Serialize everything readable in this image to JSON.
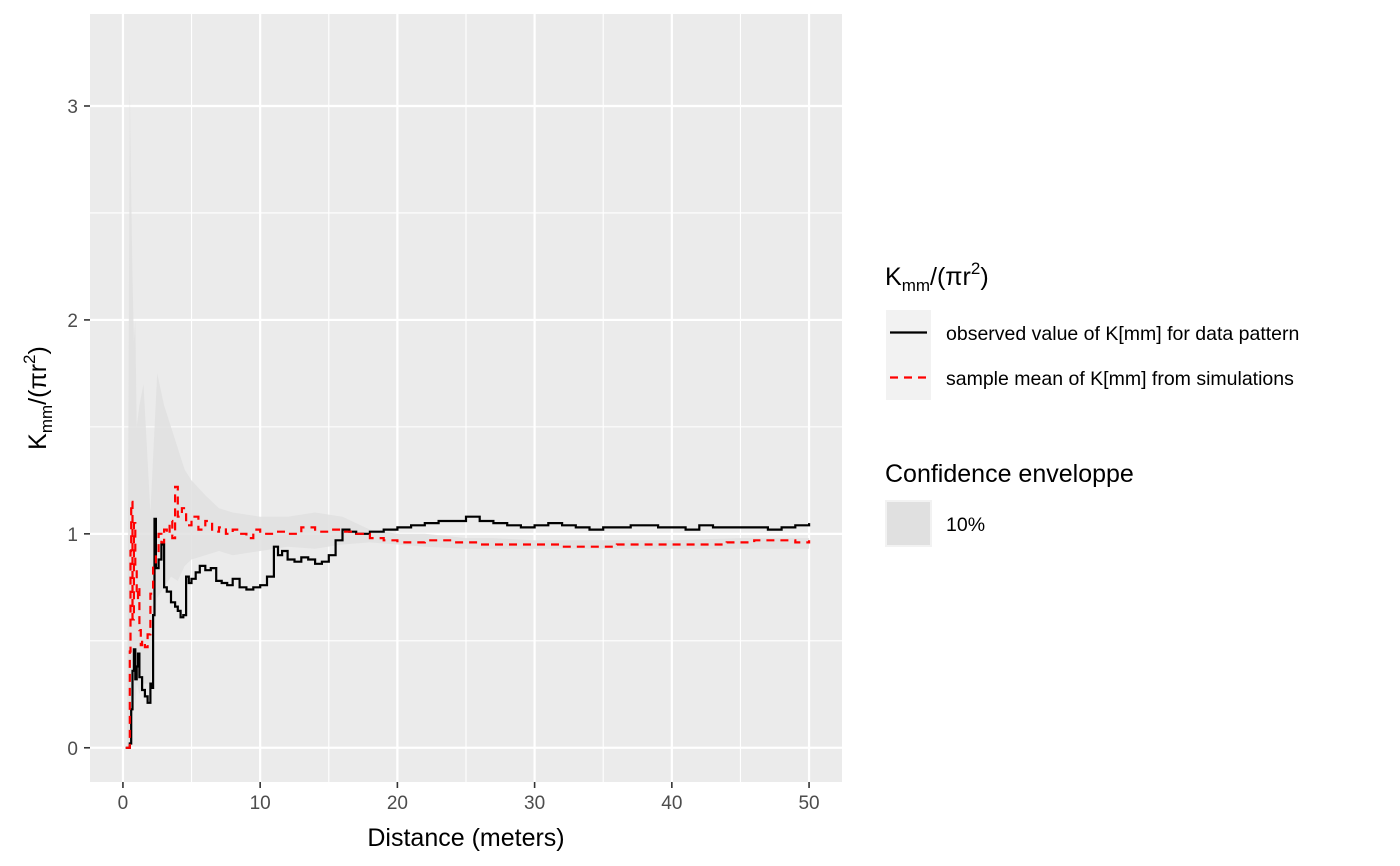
{
  "chart_data": {
    "type": "line",
    "xlabel": "Distance (meters)",
    "ylabel": {
      "base": "K",
      "sub": "mm",
      "rest": "/(πr",
      "sup": "2",
      "end": ")"
    },
    "xlim": [
      -2.4,
      52.4
    ],
    "ylim": [
      -0.16,
      3.43
    ],
    "x_ticks": [
      0,
      10,
      20,
      30,
      40,
      50
    ],
    "x_tick_labels": [
      "0",
      "10",
      "20",
      "30",
      "40",
      "50"
    ],
    "y_ticks": [
      0,
      1,
      2,
      3
    ],
    "y_tick_labels": [
      "0",
      "1",
      "2",
      "3"
    ],
    "grid": true,
    "legend_position": "right",
    "legend_line_title": {
      "base": "K",
      "sub": "mm",
      "rest": "/(πr",
      "sup": "2",
      "end": ")"
    },
    "legend_fill_title": "Confidence enveloppe",
    "colors": {
      "panel": "#ebebeb",
      "grid": "#ffffff",
      "observed": "#000000",
      "simulated": "#ff0000",
      "envelope": "#e0e0e0"
    },
    "series": [
      {
        "name": "observed value of K[mm] for data pattern",
        "style": "solid",
        "x": [
          0.2,
          0.4,
          0.5,
          0.6,
          0.7,
          0.8,
          0.9,
          1.0,
          1.1,
          1.2,
          1.4,
          1.6,
          1.8,
          2.0,
          2.1,
          2.2,
          2.3,
          2.4,
          2.6,
          2.8,
          3.0,
          3.2,
          3.5,
          3.8,
          4.0,
          4.2,
          4.4,
          4.6,
          4.8,
          5.0,
          5.3,
          5.6,
          6.0,
          6.4,
          6.8,
          7.2,
          7.6,
          8.0,
          8.5,
          9.0,
          9.5,
          10.0,
          10.5,
          11.0,
          11.3,
          11.6,
          12.0,
          12.5,
          13.0,
          13.5,
          14.0,
          14.5,
          15.0,
          15.5,
          16.0,
          16.5,
          17.0,
          18.0,
          19.0,
          20.0,
          21.0,
          22.0,
          23.0,
          24.0,
          25.0,
          26.0,
          27.0,
          28.0,
          29.0,
          30.0,
          31.0,
          32.0,
          33.0,
          34.0,
          35.0,
          36.0,
          37.0,
          38.0,
          39.0,
          40.0,
          41.0,
          42.0,
          43.0,
          44.0,
          45.0,
          46.0,
          47.0,
          48.0,
          49.0,
          50.0
        ],
        "y": [
          0.0,
          0.0,
          0.02,
          0.18,
          0.36,
          0.46,
          0.32,
          0.38,
          0.44,
          0.33,
          0.27,
          0.24,
          0.21,
          0.3,
          0.28,
          0.62,
          1.07,
          0.84,
          0.88,
          0.95,
          0.75,
          0.73,
          0.68,
          0.66,
          0.64,
          0.61,
          0.62,
          0.8,
          0.77,
          0.79,
          0.82,
          0.85,
          0.83,
          0.84,
          0.78,
          0.77,
          0.76,
          0.79,
          0.75,
          0.74,
          0.75,
          0.76,
          0.8,
          0.94,
          0.9,
          0.92,
          0.88,
          0.87,
          0.89,
          0.88,
          0.86,
          0.87,
          0.9,
          0.97,
          1.02,
          1.01,
          1.0,
          1.01,
          1.02,
          1.03,
          1.04,
          1.05,
          1.06,
          1.06,
          1.08,
          1.06,
          1.05,
          1.04,
          1.03,
          1.04,
          1.05,
          1.04,
          1.03,
          1.02,
          1.03,
          1.03,
          1.04,
          1.04,
          1.03,
          1.03,
          1.02,
          1.04,
          1.03,
          1.03,
          1.03,
          1.03,
          1.02,
          1.03,
          1.04,
          1.05
        ]
      },
      {
        "name": "sample mean of K[mm] from simulations",
        "style": "dashed",
        "x": [
          0.2,
          0.4,
          0.5,
          0.55,
          0.6,
          0.7,
          0.8,
          0.9,
          1.0,
          1.1,
          1.2,
          1.3,
          1.4,
          1.6,
          1.8,
          2.0,
          2.2,
          2.4,
          2.6,
          2.8,
          3.0,
          3.2,
          3.4,
          3.6,
          3.8,
          4.0,
          4.3,
          4.6,
          5.0,
          5.5,
          6.0,
          6.5,
          7.0,
          7.5,
          8.0,
          8.5,
          9.0,
          9.5,
          10.0,
          11.0,
          12.0,
          13.0,
          14.0,
          15.0,
          16.0,
          17.0,
          18.0,
          19.0,
          20.0,
          22.0,
          24.0,
          26.0,
          28.0,
          30.0,
          32.0,
          34.0,
          36.0,
          38.0,
          40.0,
          42.0,
          44.0,
          46.0,
          48.0,
          49.0,
          50.0
        ],
        "y": [
          0.0,
          0.0,
          0.45,
          0.92,
          1.15,
          0.6,
          1.05,
          0.85,
          0.7,
          0.75,
          0.55,
          0.48,
          0.5,
          0.47,
          0.53,
          0.72,
          0.85,
          0.92,
          1.0,
          0.96,
          1.02,
          1.0,
          1.06,
          0.98,
          1.22,
          1.08,
          1.12,
          1.04,
          1.08,
          1.02,
          1.06,
          1.01,
          1.03,
          1.0,
          1.02,
          1.0,
          0.98,
          1.02,
          1.0,
          1.01,
          1.0,
          1.03,
          1.01,
          1.02,
          1.01,
          1.0,
          0.98,
          0.97,
          0.96,
          0.97,
          0.96,
          0.95,
          0.95,
          0.95,
          0.94,
          0.94,
          0.95,
          0.95,
          0.95,
          0.95,
          0.96,
          0.97,
          0.97,
          0.96,
          0.97
        ]
      }
    ],
    "envelope": {
      "name": "10%",
      "x": [
        0.3,
        0.5,
        0.6,
        0.7,
        0.8,
        0.9,
        1.0,
        1.2,
        1.5,
        2.0,
        2.5,
        3.0,
        3.5,
        4.0,
        4.5,
        5.0,
        6.0,
        7.0,
        8.0,
        10.0,
        12.0,
        14.0,
        16.0,
        18.0,
        20.0,
        22.0,
        25.0,
        27.0,
        30.0,
        35.0,
        40.0,
        45.0,
        50.0
      ],
      "lower": [
        0.0,
        0.0,
        0.05,
        0.15,
        0.25,
        0.2,
        0.3,
        0.25,
        0.3,
        0.3,
        0.7,
        0.75,
        0.8,
        0.78,
        0.85,
        0.88,
        0.9,
        0.92,
        0.9,
        0.92,
        0.94,
        0.93,
        0.95,
        0.96,
        0.95,
        0.94,
        0.93,
        0.93,
        0.93,
        0.93,
        0.93,
        0.93,
        0.93
      ],
      "upper": [
        0.0,
        3.1,
        2.6,
        2.2,
        1.9,
        2.0,
        1.5,
        1.6,
        1.7,
        1.1,
        1.75,
        1.6,
        1.5,
        1.4,
        1.3,
        1.25,
        1.18,
        1.12,
        1.1,
        1.08,
        1.08,
        1.1,
        1.08,
        1.02,
        1.0,
        1.0,
        0.98,
        0.98,
        0.97,
        0.97,
        0.97,
        0.98,
        0.98
      ]
    }
  }
}
